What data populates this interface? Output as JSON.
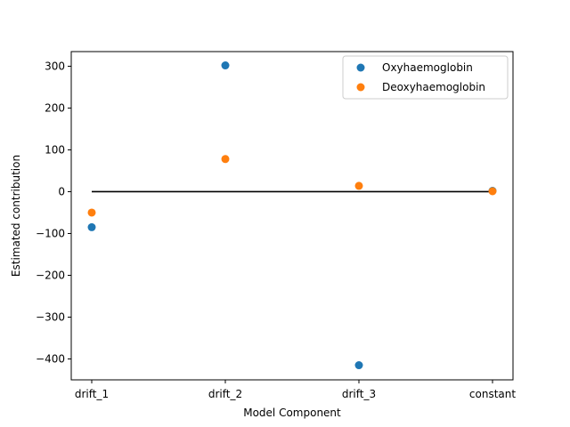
{
  "chart_data": {
    "type": "scatter",
    "title": "",
    "xlabel": "Model Component",
    "ylabel": "Estimated contribution",
    "categories": [
      "drift_1",
      "drift_2",
      "drift_3",
      "constant"
    ],
    "ylim": [
      -450,
      335
    ],
    "yticks": [
      -400,
      -300,
      -200,
      -100,
      0,
      100,
      200,
      300
    ],
    "ytick_labels": [
      "−400",
      "−300",
      "−200",
      "−100",
      "0",
      "100",
      "200",
      "300"
    ],
    "series": [
      {
        "name": "Oxyhaemoglobin",
        "color": "#1f77b4",
        "values": [
          -85,
          302,
          -415,
          2
        ]
      },
      {
        "name": "Deoxyhaemoglobin",
        "color": "#ff7f0e",
        "values": [
          -50,
          78,
          14,
          1
        ]
      }
    ],
    "reference_line": {
      "y": 0,
      "from_category": "drift_1",
      "to_category": "constant",
      "color": "#000000"
    },
    "grid": false,
    "legend_position": "top-right"
  }
}
